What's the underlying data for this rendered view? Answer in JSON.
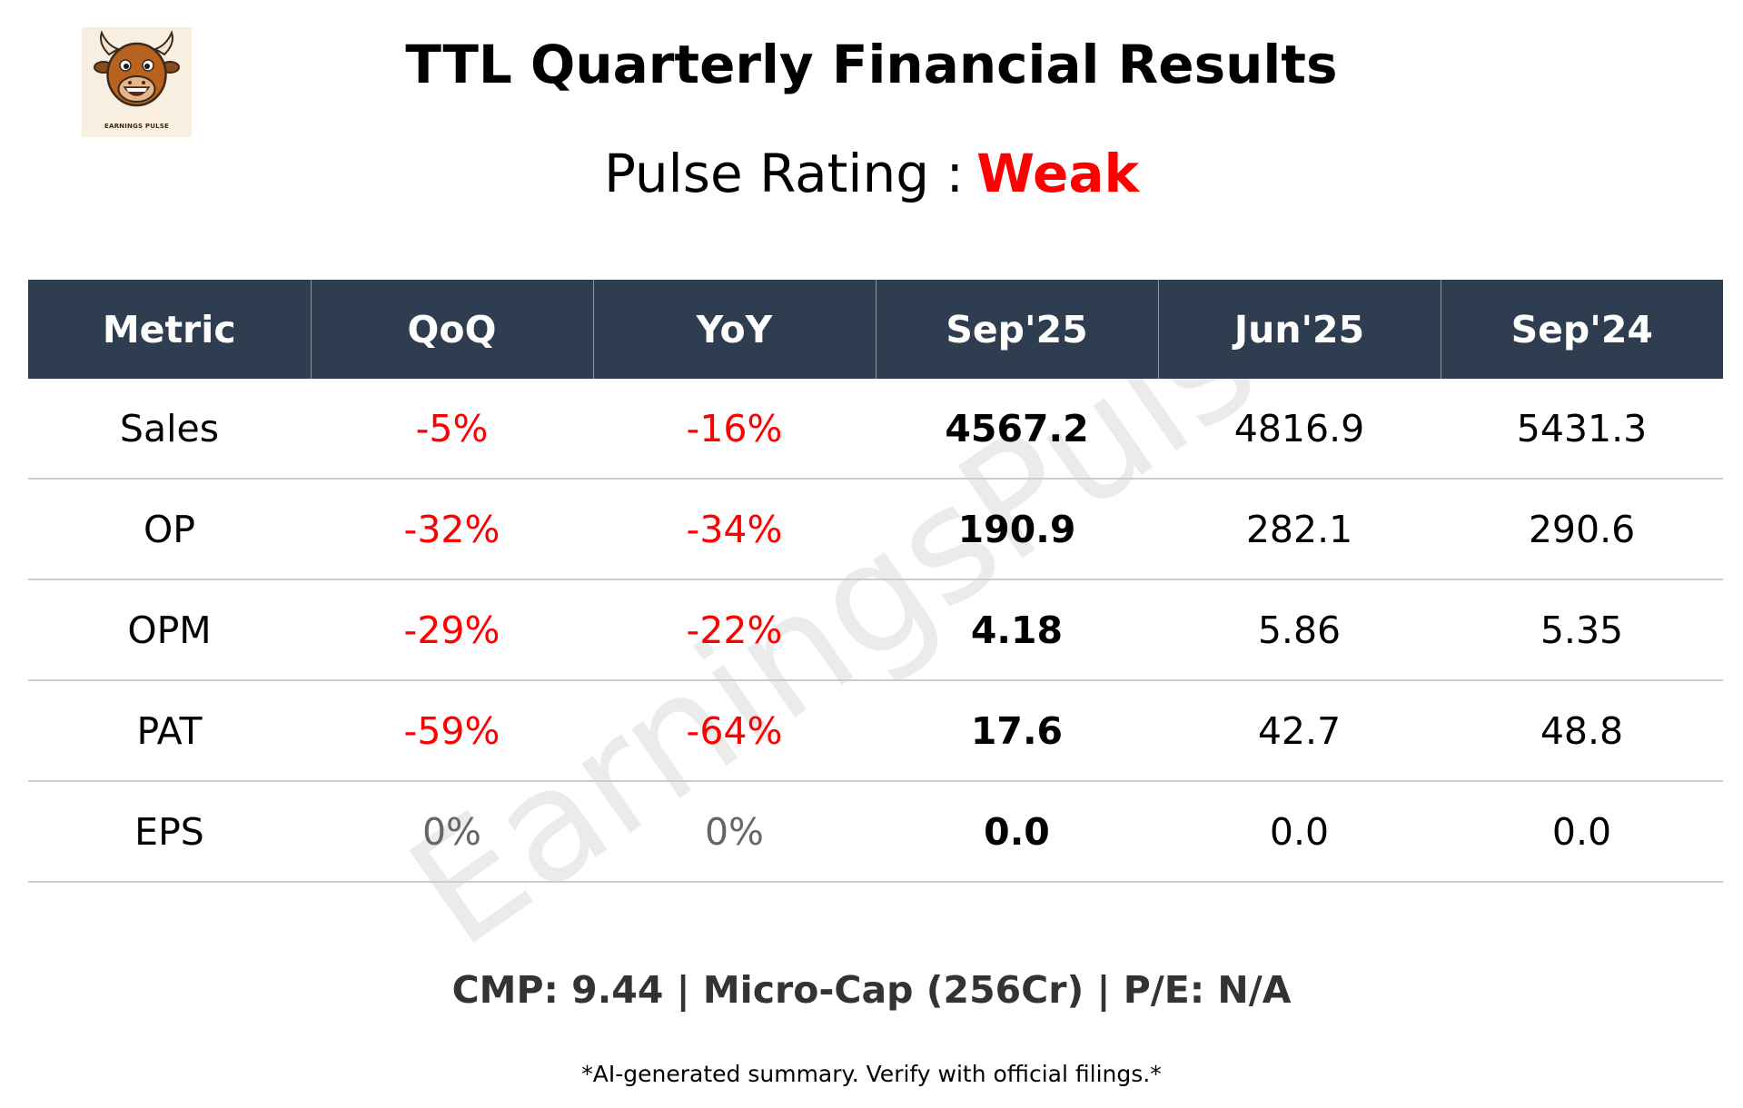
{
  "logo": {
    "icon": "bull-mascot-icon",
    "caption": "EARNINGS PULSE",
    "background": "#f8efe1"
  },
  "title": "TTL Quarterly Financial Results",
  "rating": {
    "label": "Pulse Rating :",
    "value": "Weak",
    "value_color": "#ff0000"
  },
  "watermark": "EarningsPulse",
  "table": {
    "header_bg": "#2e3d50",
    "negative_color": "#ff0000",
    "zero_color": "#666666",
    "columns": [
      "Metric",
      "QoQ",
      "YoY",
      "Sep'25",
      "Jun'25",
      "Sep'24"
    ],
    "rows": [
      {
        "metric": "Sales",
        "qoq": "-5%",
        "yoy": "-16%",
        "sep25": "4567.2",
        "jun25": "4816.9",
        "sep24": "5431.3"
      },
      {
        "metric": "OP",
        "qoq": "-32%",
        "yoy": "-34%",
        "sep25": "190.9",
        "jun25": "282.1",
        "sep24": "290.6"
      },
      {
        "metric": "OPM",
        "qoq": "-29%",
        "yoy": "-22%",
        "sep25": "4.18",
        "jun25": "5.86",
        "sep24": "5.35"
      },
      {
        "metric": "PAT",
        "qoq": "-59%",
        "yoy": "-64%",
        "sep25": "17.6",
        "jun25": "42.7",
        "sep24": "48.8"
      },
      {
        "metric": "EPS",
        "qoq": "0%",
        "yoy": "0%",
        "sep25": "0.0",
        "jun25": "0.0",
        "sep24": "0.0"
      }
    ]
  },
  "summary": "CMP: 9.44 | Micro-Cap (256Cr) | P/E: N/A",
  "disclaimer": "*AI-generated summary. Verify with official filings.*"
}
